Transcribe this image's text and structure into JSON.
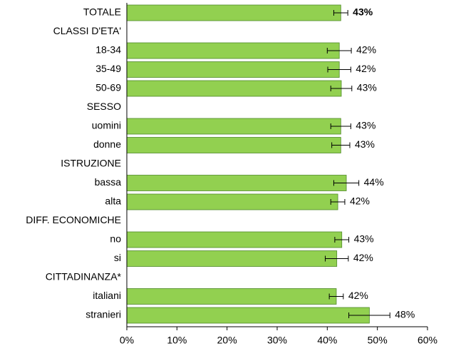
{
  "chart_data": {
    "type": "hbar",
    "categories": [
      "TOTALE",
      "CLASSI D'ETA'",
      "18-34",
      "35-49",
      "50-69",
      "SESSO",
      "uomini",
      "donne",
      "ISTRUZIONE",
      "bassa",
      "alta",
      "DIFF. ECONOMICHE",
      "no",
      "si",
      "CITTADINANZA*",
      "italiani",
      "stranieri"
    ],
    "values": [
      42.7,
      null,
      42.4,
      42.4,
      42.8,
      null,
      42.7,
      42.7,
      null,
      43.8,
      42.1,
      null,
      42.9,
      41.9,
      null,
      41.8,
      48.4
    ],
    "errors": [
      1.4,
      null,
      2.4,
      2.3,
      2.1,
      null,
      2.0,
      1.8,
      null,
      2.5,
      1.4,
      null,
      1.4,
      2.3,
      null,
      1.4,
      4.1
    ],
    "value_labels": [
      "43%",
      null,
      "42%",
      "42%",
      "43%",
      null,
      "43%",
      "43%",
      null,
      "44%",
      "42%",
      null,
      "43%",
      "42%",
      null,
      "42%",
      "48%"
    ],
    "color": "#92d050",
    "xlim": [
      0,
      60
    ],
    "xticks": [
      {
        "value": 0,
        "label": "0%"
      },
      {
        "value": 10,
        "label": "10%"
      },
      {
        "value": 20,
        "label": "20%"
      },
      {
        "value": 30,
        "label": "30%"
      },
      {
        "value": 40,
        "label": "40%"
      },
      {
        "value": 50,
        "label": "50%"
      },
      {
        "value": 60,
        "label": "60%"
      }
    ]
  }
}
